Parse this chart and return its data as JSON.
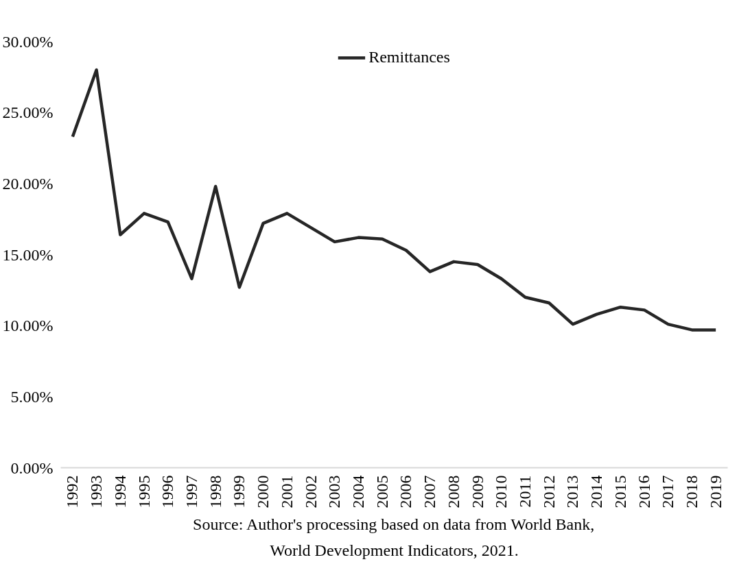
{
  "chart_data": {
    "type": "line",
    "categories": [
      "1992",
      "1993",
      "1994",
      "1995",
      "1996",
      "1997",
      "1998",
      "1999",
      "2000",
      "2001",
      "2002",
      "2003",
      "2004",
      "2005",
      "2006",
      "2007",
      "2008",
      "2009",
      "2010",
      "2011",
      "2012",
      "2013",
      "2014",
      "2015",
      "2016",
      "2017",
      "2018",
      "2019"
    ],
    "series": [
      {
        "name": "Remittances",
        "color": "#262626",
        "values": [
          23.3,
          28.0,
          16.4,
          17.9,
          17.3,
          13.3,
          19.8,
          12.7,
          17.2,
          17.9,
          16.9,
          15.9,
          16.2,
          16.1,
          15.3,
          13.8,
          14.5,
          14.3,
          13.3,
          12.0,
          11.6,
          10.1,
          10.8,
          11.3,
          11.1,
          10.1,
          9.7,
          9.7
        ]
      }
    ],
    "ylim": [
      0,
      30
    ],
    "yticks": [
      {
        "value": 0,
        "label": "0.00%"
      },
      {
        "value": 5,
        "label": "5.00%"
      },
      {
        "value": 10,
        "label": "10.00%"
      },
      {
        "value": 15,
        "label": "15.00%"
      },
      {
        "value": 20,
        "label": "20.00%"
      },
      {
        "value": 25,
        "label": "25.00%"
      },
      {
        "value": 30,
        "label": "30.00%"
      }
    ],
    "grid": false,
    "legend": "top",
    "marker": "none",
    "line_style": "solid",
    "annotations": [
      "Source: Author's processing based on data from World Bank,",
      "World Development Indicators, 2021."
    ]
  }
}
